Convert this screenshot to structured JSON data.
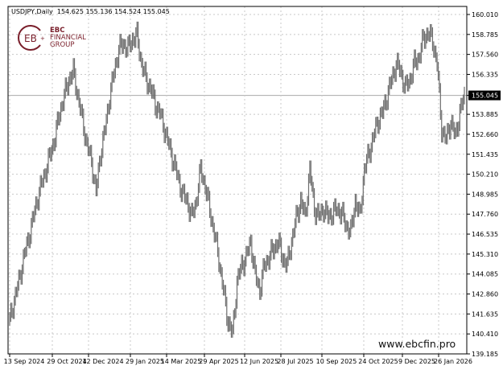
{
  "header": {
    "symbol": "USDJPY,Daily",
    "ohlc": "154.625 155.136 154.524 155.045"
  },
  "logo": {
    "line1": "EBC",
    "line2": "FINANCIAL",
    "line3": "GROUP"
  },
  "watermark": "www.ebcfin.pro",
  "colors": {
    "bars": "#6e6e6e",
    "grid": "#c8c8c8",
    "price_tag": "#000000",
    "logo": "#7a1f2b"
  },
  "chart_data": {
    "type": "bar",
    "style": "ohlc",
    "title": "USDJPY,Daily",
    "current_price": "155.045",
    "ylim": [
      139.185,
      160.01
    ],
    "grid": true,
    "y_ticks": [
      "160.010",
      "158.785",
      "157.560",
      "156.335",
      "155.045",
      "153.885",
      "152.660",
      "151.435",
      "150.210",
      "148.985",
      "147.760",
      "146.535",
      "145.310",
      "144.085",
      "142.860",
      "141.635",
      "140.410",
      "139.185"
    ],
    "x_ticks": [
      "13 Sep 2024",
      "29 Oct 2024",
      "12 Dec 2024",
      "29 Jan 2025",
      "14 Mar 2025",
      "29 Apr 2025",
      "12 Jun 2025",
      "28 Jul 2025",
      "10 Sep 2025",
      "24 Oct 2025",
      "9 Dec 2025",
      "26 Jan 2026"
    ],
    "closes": [
      141.2,
      142.5,
      143.6,
      145.0,
      146.1,
      147.3,
      148.6,
      149.6,
      150.5,
      151.5,
      152.5,
      154.0,
      155.0,
      156.0,
      156.5,
      155.0,
      153.5,
      152.0,
      151.0,
      149.1,
      151.5,
      153.0,
      155.0,
      156.5,
      157.9,
      158.2,
      157.9,
      158.5,
      158.7,
      157.0,
      156.0,
      155.5,
      154.5,
      154.0,
      153.0,
      152.0,
      151.0,
      150.0,
      149.0,
      148.6,
      147.6,
      148.5,
      150.5,
      149.5,
      148.0,
      146.6,
      145.0,
      143.1,
      141.2,
      140.4,
      143.6,
      144.6,
      145.1,
      146.1,
      144.0,
      143.1,
      144.6,
      145.1,
      145.6,
      146.1,
      145.1,
      144.6,
      146.1,
      147.5,
      148.6,
      147.6,
      150.5,
      148.1,
      147.6,
      148.1,
      147.6,
      147.8,
      148.1,
      147.8,
      147.1,
      146.6,
      148.6,
      147.6,
      150.5,
      151.5,
      152.5,
      153.5,
      154.0,
      155.0,
      156.0,
      157.0,
      156.5,
      155.5,
      156.0,
      157.0,
      157.4,
      158.5,
      158.9,
      158.4,
      157.0,
      153.0,
      152.3,
      153.5,
      152.5,
      154.0,
      155.0
    ]
  }
}
